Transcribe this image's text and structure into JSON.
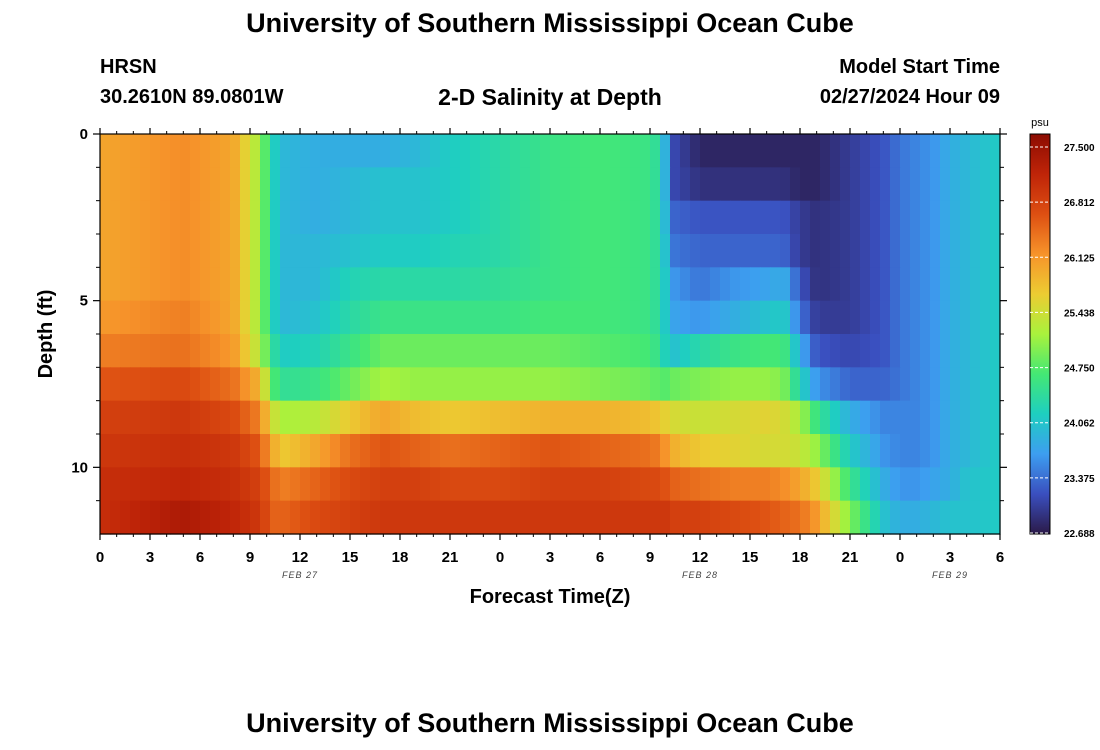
{
  "header": {
    "title": "University of Southern Mississippi Ocean Cube",
    "station": "HRSN",
    "coordinates": "30.2610N  89.0801W",
    "start_label": "Model Start Time",
    "start_value": "02/27/2024 Hour 09",
    "footer_title": "University of Southern Mississippi Ocean Cube"
  },
  "chart_data": {
    "type": "heatmap",
    "title": "2-D Salinity at Depth",
    "xlabel": "Forecast Time(Z)",
    "ylabel": "Depth (ft)",
    "x_range": [
      0,
      54
    ],
    "x_ticks": [
      0,
      3,
      6,
      9,
      12,
      15,
      18,
      21,
      24,
      27,
      30,
      33,
      36,
      39,
      42,
      45,
      48,
      51,
      54
    ],
    "x_tick_labels": [
      "0",
      "3",
      "6",
      "9",
      "12",
      "15",
      "18",
      "21",
      "0",
      "3",
      "6",
      "9",
      "12",
      "15",
      "18",
      "21",
      "0",
      "3",
      "6"
    ],
    "date_labels": [
      {
        "x": 12,
        "label": "FEB 27"
      },
      {
        "x": 36,
        "label": "FEB 28"
      },
      {
        "x": 51,
        "label": "FEB 29"
      }
    ],
    "y_range": [
      0,
      12
    ],
    "y_ticks": [
      0,
      5,
      10
    ],
    "y_tick_labels": [
      "0",
      "5",
      "10"
    ],
    "colorbar": {
      "unit": "psu",
      "min": 22.688,
      "max": 27.5,
      "ticks": [
        "27.500",
        "26.812",
        "26.125",
        "25.438",
        "24.750",
        "24.062",
        "23.375",
        "22.688"
      ],
      "colors": [
        "#2b1a48",
        "#3a4fbf",
        "#3d9ef0",
        "#1ecfc0",
        "#44e874",
        "#a9f23c",
        "#eccc32",
        "#f6932a",
        "#dd4f12",
        "#bf2408",
        "#8c0c02"
      ]
    },
    "depth_levels_ft": [
      0.5,
      1.5,
      2.5,
      3.5,
      4.5,
      5.5,
      6.5,
      7.5,
      8.5,
      9.5,
      10.5,
      11.5
    ],
    "time_knots_hours": [
      0,
      5,
      8,
      9.5,
      10.5,
      11,
      13,
      15,
      17,
      19,
      21,
      24,
      27,
      30,
      33,
      33.6,
      34,
      34.5,
      36,
      38,
      40,
      41,
      42,
      43,
      45,
      47,
      48,
      49,
      50,
      51,
      52,
      54
    ],
    "salinity_psu": [
      [
        25.9,
        26.1,
        25.9,
        25.1,
        24.1,
        23.9,
        23.8,
        23.8,
        23.8,
        23.9,
        24.1,
        24.3,
        24.5,
        24.6,
        24.5,
        24.3,
        23.7,
        23.1,
        22.8,
        22.8,
        22.8,
        22.8,
        22.8,
        22.8,
        23.0,
        23.2,
        23.4,
        23.5,
        23.6,
        23.8,
        23.9,
        24.1
      ],
      [
        25.9,
        26.1,
        25.9,
        25.1,
        24.1,
        23.9,
        23.8,
        23.9,
        24.0,
        24.0,
        24.1,
        24.3,
        24.5,
        24.6,
        24.5,
        24.3,
        23.7,
        23.1,
        22.9,
        22.9,
        22.9,
        22.9,
        22.8,
        22.8,
        23.0,
        23.2,
        23.4,
        23.5,
        23.6,
        23.8,
        23.9,
        24.1
      ],
      [
        25.9,
        26.1,
        25.9,
        25.1,
        24.1,
        23.9,
        23.8,
        23.9,
        24.0,
        24.0,
        24.1,
        24.3,
        24.5,
        24.6,
        24.5,
        24.3,
        23.8,
        23.3,
        23.2,
        23.2,
        23.2,
        23.2,
        23.0,
        22.9,
        23.0,
        23.2,
        23.4,
        23.5,
        23.6,
        23.8,
        23.9,
        24.1
      ],
      [
        25.9,
        26.1,
        25.9,
        25.1,
        24.1,
        23.9,
        23.9,
        24.0,
        24.1,
        24.1,
        24.2,
        24.3,
        24.5,
        24.6,
        24.5,
        24.3,
        23.9,
        23.4,
        23.3,
        23.3,
        23.3,
        23.3,
        23.0,
        22.9,
        23.0,
        23.2,
        23.4,
        23.5,
        23.6,
        23.8,
        23.9,
        24.1
      ],
      [
        25.9,
        26.1,
        25.9,
        25.1,
        24.1,
        23.9,
        23.9,
        24.2,
        24.3,
        24.3,
        24.3,
        24.4,
        24.5,
        24.6,
        24.5,
        24.3,
        24.0,
        23.6,
        23.4,
        23.6,
        23.7,
        23.8,
        23.2,
        22.9,
        23.0,
        23.2,
        23.4,
        23.5,
        23.6,
        23.8,
        23.9,
        24.1
      ],
      [
        26.0,
        26.2,
        25.9,
        25.1,
        24.1,
        23.9,
        24.0,
        24.3,
        24.5,
        24.5,
        24.5,
        24.5,
        24.6,
        24.6,
        24.5,
        24.3,
        24.0,
        23.7,
        23.6,
        23.8,
        24.0,
        24.1,
        23.4,
        23.0,
        23.0,
        23.2,
        23.4,
        23.5,
        23.6,
        23.8,
        23.9,
        24.1
      ],
      [
        26.2,
        26.3,
        26.0,
        25.2,
        24.3,
        24.1,
        24.2,
        24.5,
        24.8,
        24.8,
        24.8,
        24.8,
        24.8,
        24.7,
        24.6,
        24.4,
        24.1,
        24.0,
        24.3,
        24.5,
        24.6,
        24.6,
        23.8,
        23.2,
        23.1,
        23.2,
        23.4,
        23.5,
        23.6,
        23.8,
        23.9,
        24.1
      ],
      [
        26.5,
        26.6,
        26.3,
        25.8,
        24.6,
        24.4,
        24.5,
        24.8,
        25.1,
        25.0,
        25.0,
        25.0,
        25.0,
        24.9,
        24.8,
        24.7,
        24.7,
        24.8,
        24.9,
        25.0,
        25.0,
        24.9,
        24.2,
        23.6,
        23.3,
        23.3,
        23.4,
        23.5,
        23.6,
        23.8,
        23.9,
        24.1
      ],
      [
        26.7,
        26.8,
        26.6,
        26.2,
        25.3,
        25.1,
        25.2,
        25.6,
        25.9,
        25.7,
        25.6,
        25.7,
        25.8,
        25.8,
        25.7,
        25.6,
        25.5,
        25.4,
        25.3,
        25.4,
        25.5,
        25.4,
        25.1,
        24.5,
        23.8,
        23.5,
        23.5,
        23.5,
        23.6,
        23.8,
        23.9,
        24.1
      ],
      [
        26.8,
        26.9,
        26.8,
        26.5,
        25.8,
        25.6,
        25.9,
        26.3,
        26.5,
        26.4,
        26.3,
        26.4,
        26.5,
        26.4,
        26.3,
        26.2,
        26.0,
        25.8,
        25.6,
        25.5,
        25.4,
        25.4,
        25.3,
        25.0,
        24.1,
        23.6,
        23.5,
        23.5,
        23.6,
        23.8,
        23.9,
        24.1
      ],
      [
        26.9,
        27.0,
        26.9,
        26.7,
        26.3,
        26.2,
        26.4,
        26.6,
        26.7,
        26.7,
        26.6,
        26.6,
        26.7,
        26.7,
        26.6,
        26.6,
        26.5,
        26.4,
        26.3,
        26.2,
        26.2,
        26.1,
        25.9,
        25.6,
        24.5,
        23.8,
        23.6,
        23.6,
        23.7,
        23.8,
        24.0,
        24.1
      ],
      [
        26.9,
        27.2,
        27.0,
        26.8,
        26.4,
        26.4,
        26.6,
        26.7,
        26.8,
        26.8,
        26.8,
        26.8,
        26.8,
        26.8,
        26.8,
        26.8,
        26.8,
        26.7,
        26.7,
        26.6,
        26.5,
        26.4,
        26.3,
        26.0,
        24.9,
        24.0,
        23.8,
        23.8,
        23.9,
        24.0,
        24.0,
        24.1
      ]
    ]
  }
}
